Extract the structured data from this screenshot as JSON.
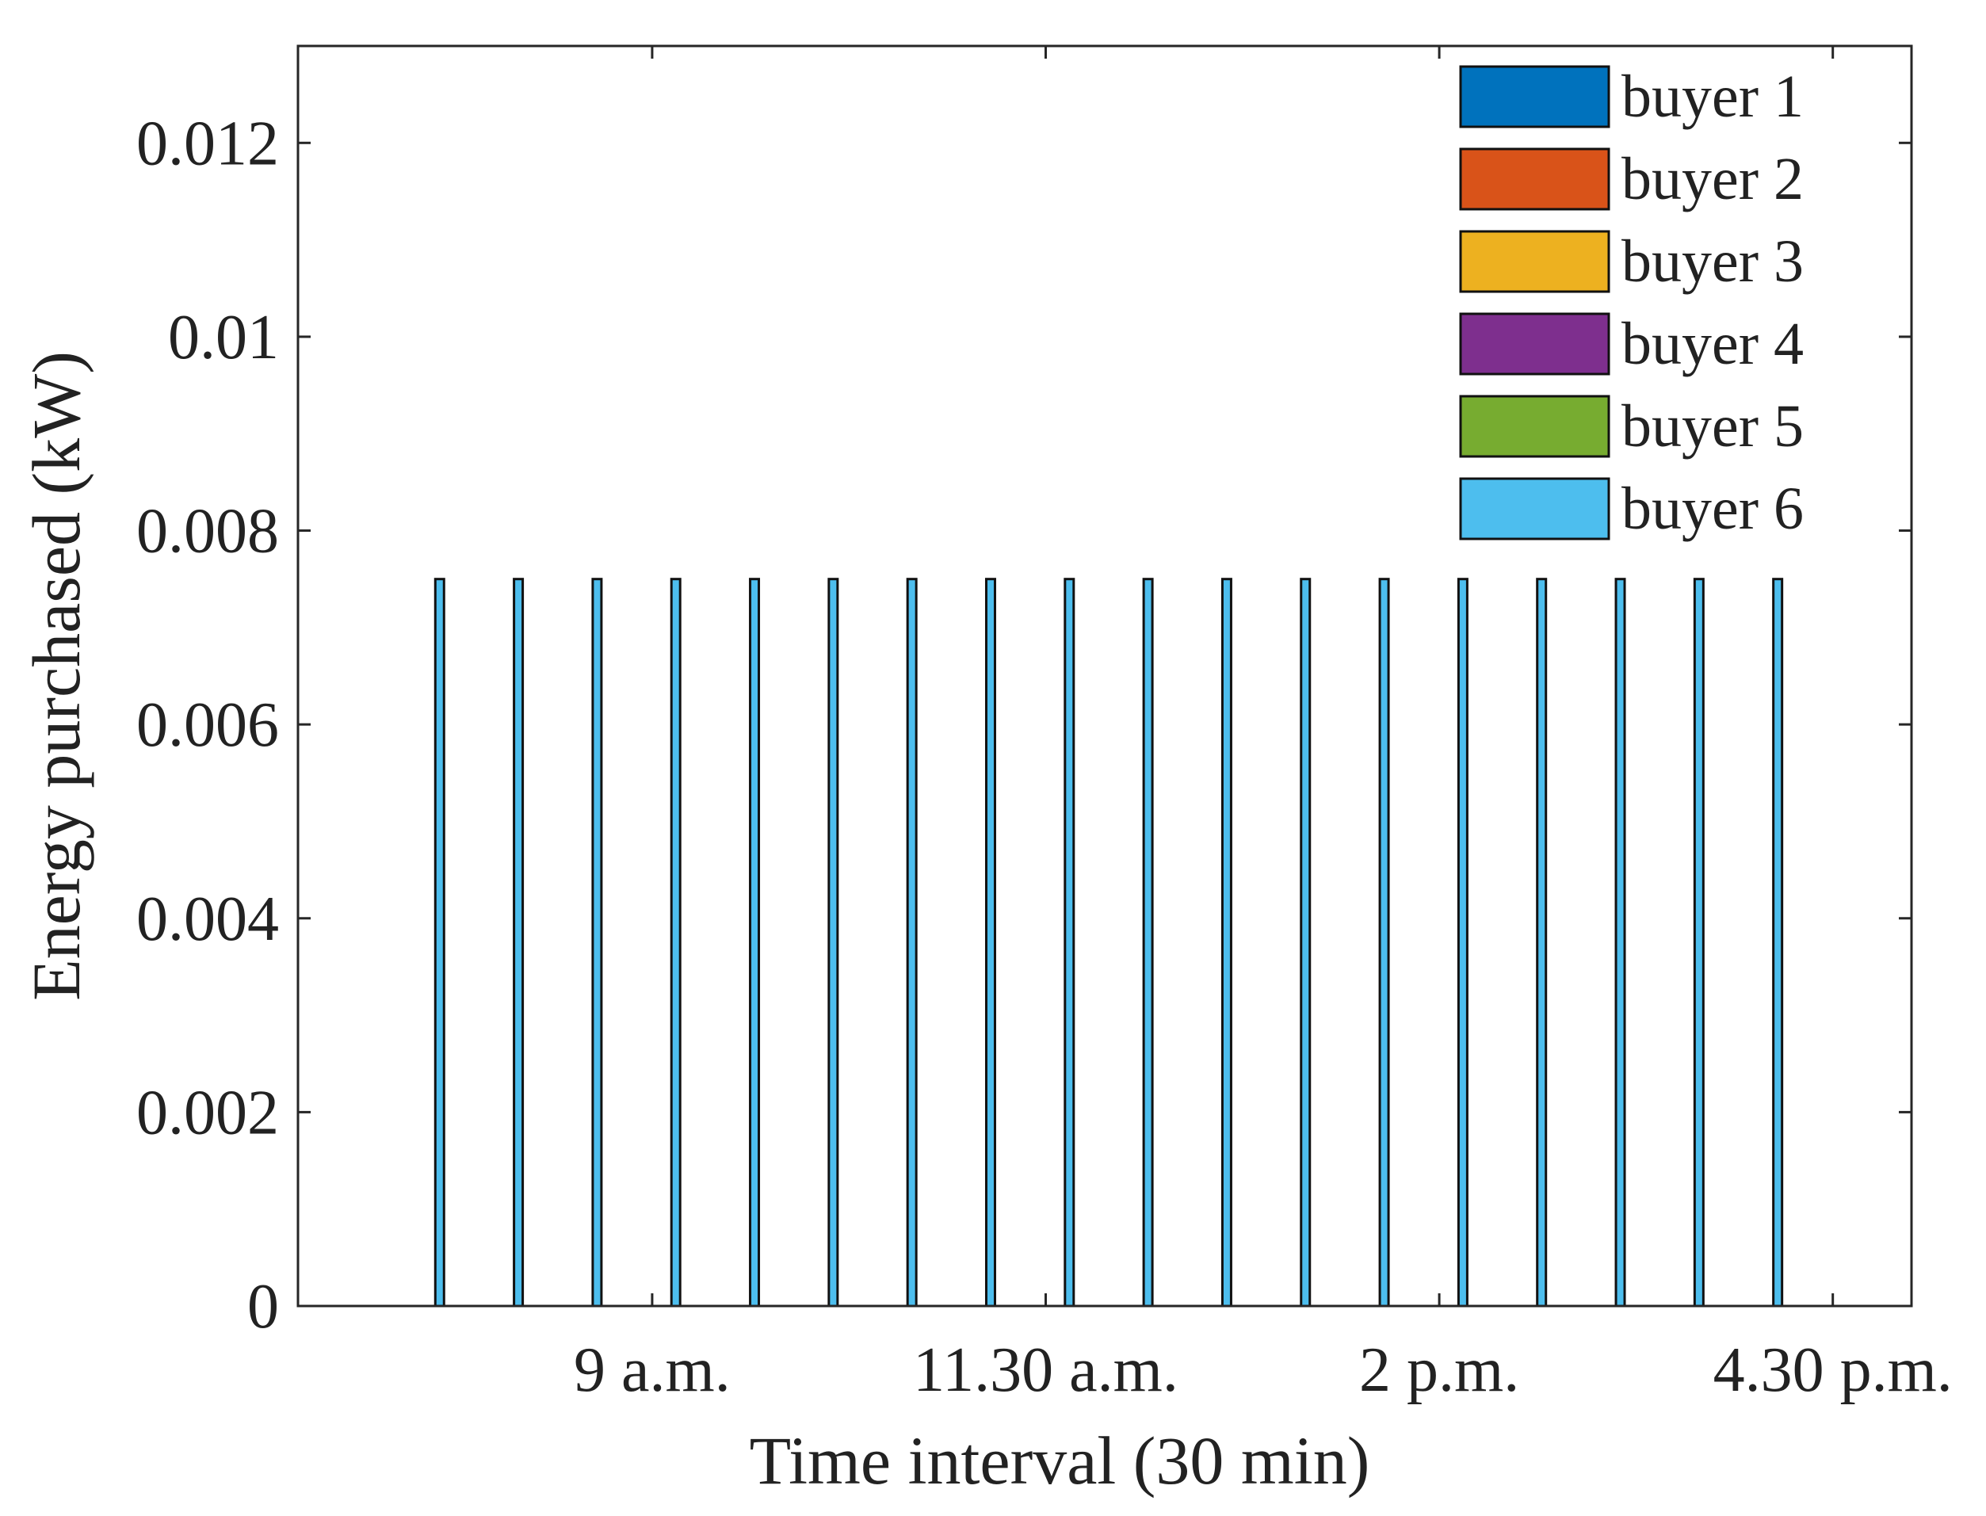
{
  "chart_data": {
    "type": "bar",
    "stacked": true,
    "xlabel": "Time interval (30 min)",
    "ylabel": "Energy purchased (kW)",
    "ylim": [
      0,
      0.013
    ],
    "xlim": [
      0,
      20.5
    ],
    "grid": false,
    "legend_position": "top-right",
    "x_ticks": [
      {
        "x": 4.5,
        "label": "9 a.m."
      },
      {
        "x": 9.5,
        "label": "11.30 a.m."
      },
      {
        "x": 14.5,
        "label": "2 p.m."
      },
      {
        "x": 19.5,
        "label": "4.30 p.m."
      }
    ],
    "y_ticks": [
      {
        "value": 0,
        "label": "0"
      },
      {
        "value": 0.002,
        "label": "0.002"
      },
      {
        "value": 0.004,
        "label": "0.004"
      },
      {
        "value": 0.006,
        "label": "0.006"
      },
      {
        "value": 0.008,
        "label": "0.008"
      },
      {
        "value": 0.01,
        "label": "0.01"
      },
      {
        "value": 0.012,
        "label": "0.012"
      }
    ],
    "x": [
      1.8,
      2.8,
      3.8,
      4.8,
      5.8,
      6.8,
      7.8,
      8.8,
      9.8,
      10.8,
      11.8,
      12.8,
      13.8,
      14.8,
      15.8,
      16.8,
      17.8,
      18.8
    ],
    "series": [
      {
        "name": "buyer 1",
        "color": "#0072BD",
        "values": [
          0,
          0,
          0,
          0,
          0,
          0,
          0,
          0,
          0,
          0,
          0,
          0,
          0,
          0,
          0,
          0,
          0,
          0
        ]
      },
      {
        "name": "buyer 2",
        "color": "#D95319",
        "values": [
          0,
          0,
          0,
          0,
          0,
          0,
          0,
          0,
          0,
          0,
          0,
          0,
          0,
          0,
          0,
          0,
          0,
          0
        ]
      },
      {
        "name": "buyer 3",
        "color": "#EDB120",
        "values": [
          0,
          0,
          0,
          0,
          0,
          0,
          0,
          0,
          0,
          0,
          0,
          0,
          0,
          0,
          0,
          0,
          0,
          0
        ]
      },
      {
        "name": "buyer 4",
        "color": "#7E2F8E",
        "values": [
          0,
          0,
          0,
          0,
          0,
          0,
          0,
          0,
          0,
          0,
          0,
          0,
          0,
          0,
          0,
          0,
          0,
          0
        ]
      },
      {
        "name": "buyer 5",
        "color": "#77AC30",
        "values": [
          0,
          0,
          0,
          0,
          0,
          0,
          0,
          0,
          0,
          0,
          0,
          0,
          0,
          0,
          0,
          0,
          0,
          0
        ]
      },
      {
        "name": "buyer 6",
        "color": "#4DBEEE",
        "values": [
          0.0075,
          0.0075,
          0.0075,
          0.0075,
          0.0075,
          0.0075,
          0.0075,
          0.0075,
          0.0075,
          0.0075,
          0.0075,
          0.0075,
          0.0075,
          0.0075,
          0.0075,
          0.0075,
          0.0075,
          0.0075
        ]
      }
    ]
  }
}
